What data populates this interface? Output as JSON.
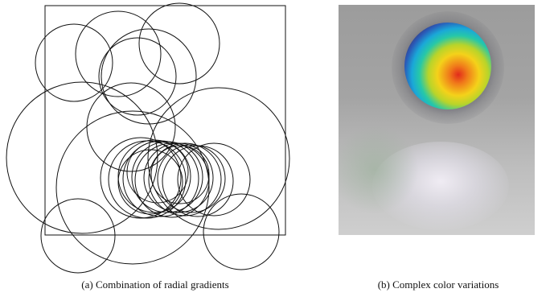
{
  "figure_a": {
    "caption": "(a) Combination of radial gradients"
  },
  "figure_b": {
    "caption": "(b) Complex color variations"
  }
}
